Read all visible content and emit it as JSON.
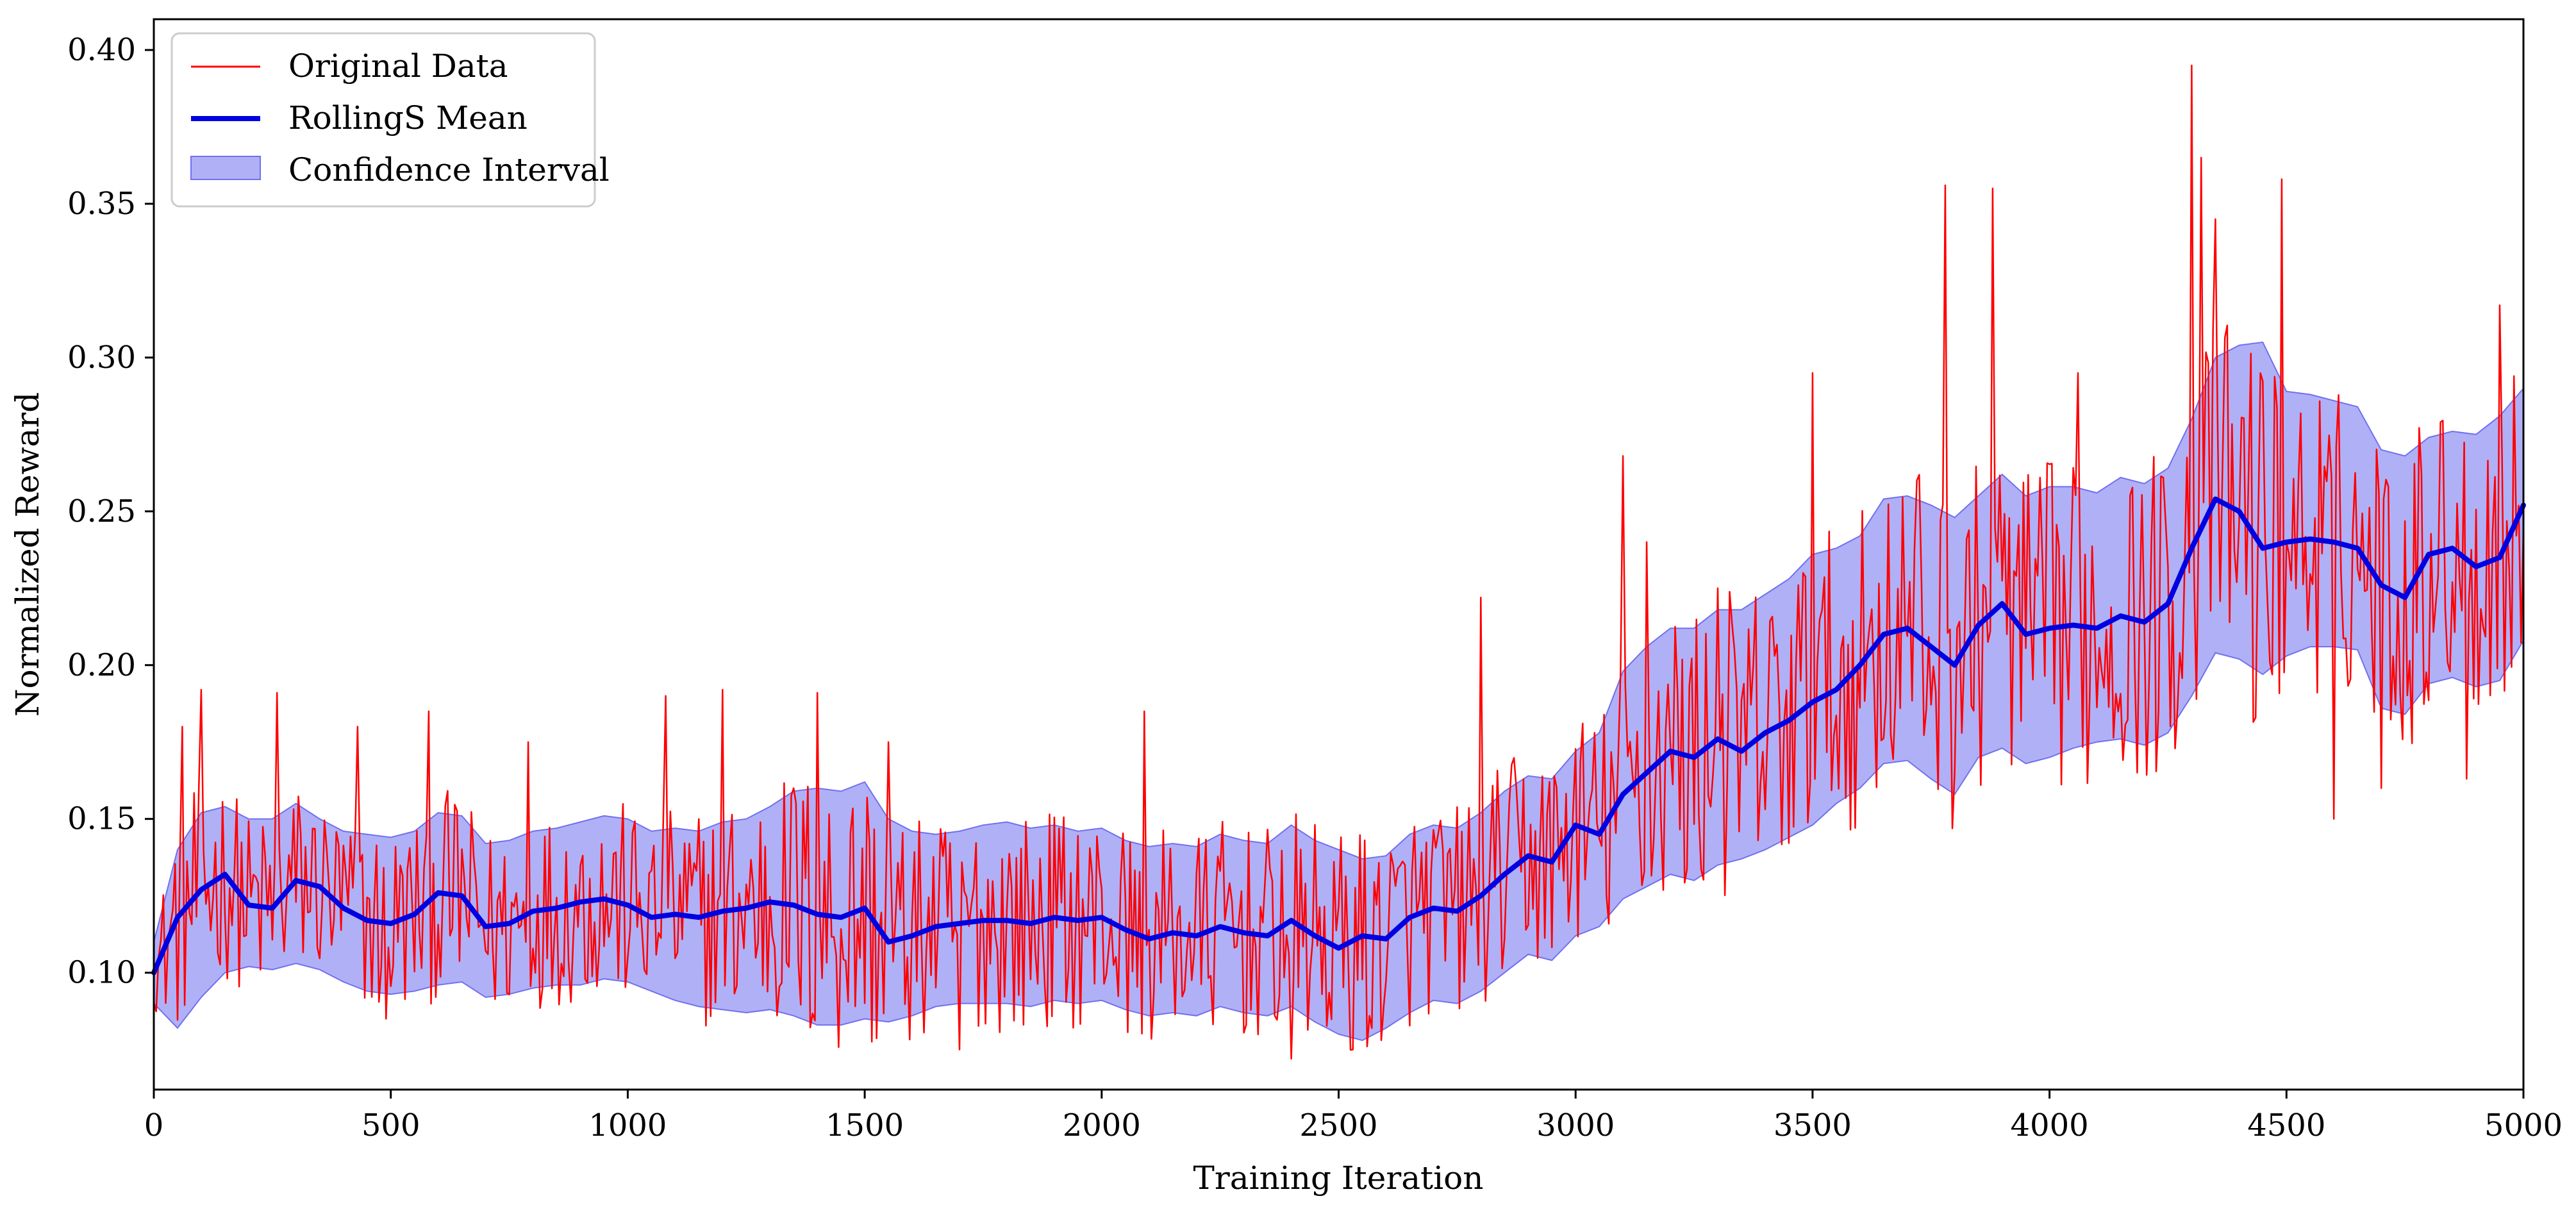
{
  "chart_data": {
    "type": "line",
    "title": "",
    "xlabel": "Training Iteration",
    "ylabel": "Normalized Reward",
    "xlim": [
      0,
      5000
    ],
    "ylim": [
      0.062,
      0.41
    ],
    "xticks": [
      0,
      500,
      1000,
      1500,
      2000,
      2500,
      3000,
      3500,
      4000,
      4500,
      5000
    ],
    "yticks": [
      0.1,
      0.15,
      0.2,
      0.25,
      0.3,
      0.35,
      0.4
    ],
    "xtick_labels": [
      "0",
      "500",
      "1000",
      "1500",
      "2000",
      "2500",
      "3000",
      "3500",
      "4000",
      "4500",
      "5000"
    ],
    "ytick_labels": [
      "0.10",
      "0.15",
      "0.20",
      "0.25",
      "0.30",
      "0.35",
      "0.40"
    ],
    "grid": false,
    "legend_position": "top-left",
    "legend": [
      {
        "key": "original",
        "label": "Original Data",
        "color": "#ff0000",
        "style": "thin-line"
      },
      {
        "key": "rolling",
        "label": "RollingS Mean",
        "color": "#0000e0",
        "style": "thick-line"
      },
      {
        "key": "ci",
        "label": "Confidence Interval",
        "color": "#7070f0",
        "style": "band"
      }
    ],
    "series": [
      {
        "name": "RollingS Mean",
        "x": [
          0,
          50,
          100,
          150,
          200,
          250,
          300,
          350,
          400,
          450,
          500,
          550,
          600,
          650,
          700,
          750,
          800,
          850,
          900,
          950,
          1000,
          1050,
          1100,
          1150,
          1200,
          1250,
          1300,
          1350,
          1400,
          1450,
          1500,
          1550,
          1600,
          1650,
          1700,
          1750,
          1800,
          1850,
          1900,
          1950,
          2000,
          2050,
          2100,
          2150,
          2200,
          2250,
          2300,
          2350,
          2400,
          2450,
          2500,
          2550,
          2600,
          2650,
          2700,
          2750,
          2800,
          2850,
          2900,
          2950,
          3000,
          3050,
          3100,
          3150,
          3200,
          3250,
          3300,
          3350,
          3400,
          3450,
          3500,
          3550,
          3600,
          3650,
          3700,
          3750,
          3800,
          3850,
          3900,
          3950,
          4000,
          4050,
          4100,
          4150,
          4200,
          4250,
          4300,
          4350,
          4400,
          4450,
          4500,
          4550,
          4600,
          4650,
          4700,
          4750,
          4800,
          4850,
          4900,
          4950,
          5000
        ],
        "y": [
          0.1,
          0.118,
          0.127,
          0.132,
          0.122,
          0.121,
          0.13,
          0.128,
          0.121,
          0.117,
          0.116,
          0.119,
          0.126,
          0.125,
          0.115,
          0.116,
          0.12,
          0.121,
          0.123,
          0.124,
          0.122,
          0.118,
          0.119,
          0.118,
          0.12,
          0.121,
          0.123,
          0.122,
          0.119,
          0.118,
          0.121,
          0.11,
          0.112,
          0.115,
          0.116,
          0.117,
          0.117,
          0.116,
          0.118,
          0.117,
          0.118,
          0.114,
          0.111,
          0.113,
          0.112,
          0.115,
          0.113,
          0.112,
          0.117,
          0.112,
          0.108,
          0.112,
          0.111,
          0.118,
          0.121,
          0.12,
          0.125,
          0.132,
          0.138,
          0.136,
          0.148,
          0.145,
          0.158,
          0.165,
          0.172,
          0.17,
          0.176,
          0.172,
          0.178,
          0.182,
          0.188,
          0.192,
          0.2,
          0.21,
          0.212,
          0.206,
          0.2,
          0.213,
          0.22,
          0.21,
          0.212,
          0.213,
          0.212,
          0.216,
          0.214,
          0.22,
          0.238,
          0.254,
          0.25,
          0.238,
          0.24,
          0.241,
          0.24,
          0.238,
          0.226,
          0.222,
          0.236,
          0.238,
          0.232,
          0.235,
          0.252
        ]
      },
      {
        "name": "Confidence Interval (upper)",
        "x": [
          0,
          50,
          100,
          150,
          200,
          250,
          300,
          350,
          400,
          450,
          500,
          550,
          600,
          650,
          700,
          750,
          800,
          850,
          900,
          950,
          1000,
          1050,
          1100,
          1150,
          1200,
          1250,
          1300,
          1350,
          1400,
          1450,
          1500,
          1550,
          1600,
          1650,
          1700,
          1750,
          1800,
          1850,
          1900,
          1950,
          2000,
          2050,
          2100,
          2150,
          2200,
          2250,
          2300,
          2350,
          2400,
          2450,
          2500,
          2550,
          2600,
          2650,
          2700,
          2750,
          2800,
          2850,
          2900,
          2950,
          3000,
          3050,
          3100,
          3150,
          3200,
          3250,
          3300,
          3350,
          3400,
          3450,
          3500,
          3550,
          3600,
          3650,
          3700,
          3750,
          3800,
          3850,
          3900,
          3950,
          4000,
          4050,
          4100,
          4150,
          4200,
          4250,
          4300,
          4350,
          4400,
          4450,
          4500,
          4550,
          4600,
          4650,
          4700,
          4750,
          4800,
          4850,
          4900,
          4950,
          5000
        ],
        "y": [
          0.11,
          0.14,
          0.152,
          0.154,
          0.15,
          0.15,
          0.155,
          0.15,
          0.146,
          0.145,
          0.144,
          0.146,
          0.152,
          0.151,
          0.142,
          0.143,
          0.146,
          0.147,
          0.149,
          0.151,
          0.15,
          0.146,
          0.147,
          0.146,
          0.149,
          0.15,
          0.154,
          0.159,
          0.16,
          0.159,
          0.162,
          0.15,
          0.146,
          0.145,
          0.146,
          0.148,
          0.149,
          0.147,
          0.148,
          0.146,
          0.147,
          0.143,
          0.141,
          0.142,
          0.141,
          0.145,
          0.143,
          0.142,
          0.148,
          0.143,
          0.14,
          0.137,
          0.138,
          0.145,
          0.148,
          0.147,
          0.152,
          0.159,
          0.164,
          0.163,
          0.172,
          0.178,
          0.198,
          0.206,
          0.212,
          0.212,
          0.218,
          0.218,
          0.223,
          0.228,
          0.236,
          0.238,
          0.242,
          0.254,
          0.255,
          0.252,
          0.248,
          0.255,
          0.262,
          0.255,
          0.258,
          0.258,
          0.256,
          0.261,
          0.259,
          0.264,
          0.28,
          0.3,
          0.304,
          0.305,
          0.289,
          0.288,
          0.286,
          0.284,
          0.27,
          0.268,
          0.274,
          0.276,
          0.275,
          0.281,
          0.29
        ]
      },
      {
        "name": "Confidence Interval (lower)",
        "x": [
          0,
          50,
          100,
          150,
          200,
          250,
          300,
          350,
          400,
          450,
          500,
          550,
          600,
          650,
          700,
          750,
          800,
          850,
          900,
          950,
          1000,
          1050,
          1100,
          1150,
          1200,
          1250,
          1300,
          1350,
          1400,
          1450,
          1500,
          1550,
          1600,
          1650,
          1700,
          1750,
          1800,
          1850,
          1900,
          1950,
          2000,
          2050,
          2100,
          2150,
          2200,
          2250,
          2300,
          2350,
          2400,
          2450,
          2500,
          2550,
          2600,
          2650,
          2700,
          2750,
          2800,
          2850,
          2900,
          2950,
          3000,
          3050,
          3100,
          3150,
          3200,
          3250,
          3300,
          3350,
          3400,
          3450,
          3500,
          3550,
          3600,
          3650,
          3700,
          3750,
          3800,
          3850,
          3900,
          3950,
          4000,
          4050,
          4100,
          4150,
          4200,
          4250,
          4300,
          4350,
          4400,
          4450,
          4500,
          4550,
          4600,
          4650,
          4700,
          4750,
          4800,
          4850,
          4900,
          4950,
          5000
        ],
        "y": [
          0.09,
          0.082,
          0.092,
          0.1,
          0.102,
          0.101,
          0.103,
          0.101,
          0.097,
          0.094,
          0.093,
          0.094,
          0.096,
          0.097,
          0.092,
          0.093,
          0.095,
          0.096,
          0.096,
          0.098,
          0.097,
          0.094,
          0.091,
          0.089,
          0.088,
          0.087,
          0.088,
          0.086,
          0.083,
          0.083,
          0.085,
          0.084,
          0.086,
          0.089,
          0.09,
          0.09,
          0.09,
          0.089,
          0.091,
          0.09,
          0.091,
          0.088,
          0.086,
          0.087,
          0.086,
          0.089,
          0.087,
          0.086,
          0.089,
          0.084,
          0.08,
          0.078,
          0.082,
          0.087,
          0.091,
          0.09,
          0.094,
          0.1,
          0.106,
          0.104,
          0.112,
          0.115,
          0.124,
          0.128,
          0.132,
          0.13,
          0.135,
          0.137,
          0.14,
          0.144,
          0.148,
          0.155,
          0.16,
          0.168,
          0.169,
          0.163,
          0.158,
          0.17,
          0.173,
          0.168,
          0.17,
          0.173,
          0.175,
          0.176,
          0.174,
          0.178,
          0.19,
          0.204,
          0.202,
          0.197,
          0.203,
          0.206,
          0.206,
          0.205,
          0.186,
          0.184,
          0.194,
          0.196,
          0.193,
          0.195,
          0.208
        ]
      },
      {
        "name": "Original Data",
        "description_of_series": "noisy per-iteration reward oscillating around the rolling mean; notable peaks",
        "x": [
          0,
          60,
          100,
          260,
          430,
          490,
          580,
          790,
          1080,
          1200,
          1350,
          1400,
          1550,
          1700,
          2090,
          2400,
          2530,
          2560,
          2800,
          3100,
          3150,
          3300,
          3500,
          3720,
          3780,
          3880,
          4060,
          4300,
          4320,
          4350,
          4490,
          4600,
          4700,
          4880,
          4950
        ],
        "y": [
          0.09,
          0.18,
          0.192,
          0.191,
          0.18,
          0.085,
          0.185,
          0.175,
          0.19,
          0.192,
          0.16,
          0.191,
          0.175,
          0.075,
          0.185,
          0.072,
          0.075,
          0.076,
          0.222,
          0.268,
          0.24,
          0.225,
          0.295,
          0.26,
          0.356,
          0.355,
          0.295,
          0.395,
          0.365,
          0.345,
          0.358,
          0.15,
          0.16,
          0.163,
          0.317
        ]
      }
    ]
  }
}
